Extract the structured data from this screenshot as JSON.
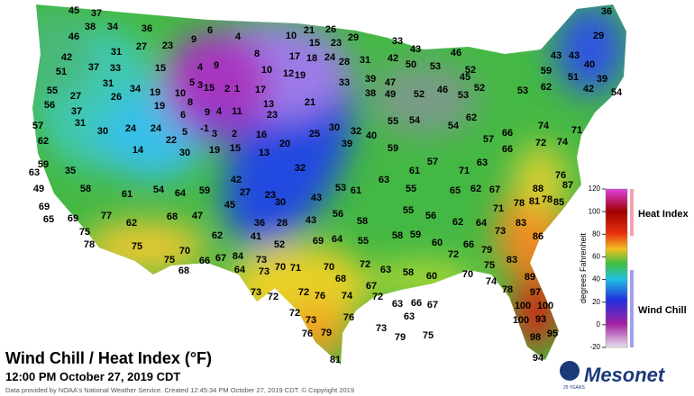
{
  "map": {
    "title": "Wind Chill / Heat Index (°F)",
    "subtitle": "12:00 PM October 27, 2019 CDT",
    "credit": "Data provided by NOAA's National Weather Service. Created 12:45:34 PM October 27, 2019 CDT. © Copyright 2019",
    "logo": "Mesonet",
    "logo_badge": "25 YEARS",
    "legend": {
      "axis_label": "degrees Fahrenheit",
      "heat_label": "Heat Index",
      "chill_label": "Wind Chill",
      "ticks": [
        120,
        100,
        80,
        60,
        40,
        20,
        0,
        -20
      ]
    },
    "stations": [
      45,
      37,
      36,
      38,
      34,
      46,
      27,
      23,
      9,
      6,
      4,
      10,
      15,
      21,
      26,
      23,
      29,
      33,
      43,
      36,
      29,
      43,
      43,
      40,
      39,
      51,
      42,
      37,
      31,
      33,
      15,
      4,
      9,
      5,
      3,
      15,
      2,
      1,
      8,
      10,
      17,
      18,
      24,
      28,
      31,
      42,
      50,
      53,
      46,
      52,
      45,
      59,
      51,
      42,
      54,
      55,
      27,
      31,
      26,
      34,
      19,
      10,
      8,
      17,
      12,
      19,
      21,
      33,
      38,
      39,
      47,
      49,
      52,
      46,
      53,
      52,
      53,
      62,
      56,
      37,
      31,
      19,
      6,
      9,
      4,
      11,
      13,
      23,
      57,
      30,
      24,
      24,
      22,
      5,
      -1,
      3,
      2,
      16,
      20,
      25,
      30,
      32,
      40,
      55,
      54,
      54,
      62,
      57,
      66,
      74,
      72,
      71,
      74,
      62,
      59,
      35,
      14,
      30,
      19,
      15,
      13,
      32,
      39,
      59,
      57,
      61,
      71,
      63,
      66,
      76,
      63,
      58,
      49,
      54,
      64,
      59,
      42,
      27,
      23,
      30,
      43,
      53,
      61,
      63,
      55,
      65,
      62,
      67,
      88,
      87,
      69,
      65,
      69,
      77,
      61,
      62,
      68,
      47,
      45,
      36,
      28,
      43,
      56,
      58,
      55,
      56,
      62,
      64,
      71,
      78,
      81,
      78,
      85,
      75,
      78,
      62,
      41,
      52,
      69,
      64,
      55,
      58,
      59,
      60,
      66,
      73,
      83,
      86,
      75,
      70,
      66,
      67,
      84,
      73,
      70,
      71,
      70,
      72,
      63,
      58,
      60,
      72,
      79,
      75,
      83,
      75,
      68,
      64,
      73,
      89,
      68,
      67,
      70,
      74,
      78,
      97,
      73,
      72,
      72,
      76,
      74,
      72,
      63,
      67,
      66,
      100,
      72,
      73,
      63,
      100,
      76,
      93,
      100,
      73,
      79,
      75,
      76,
      79,
      98,
      95,
      81,
      94
    ]
  }
}
